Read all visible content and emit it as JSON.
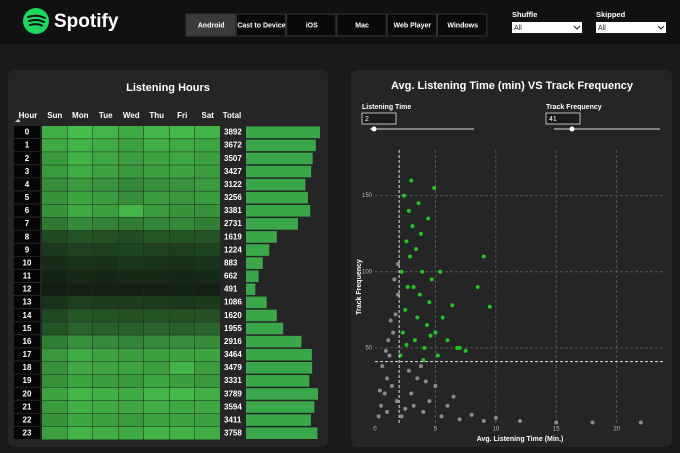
{
  "header": {
    "brand": "Spotify",
    "tabs": [
      "Android",
      "Cast to Device",
      "iOS",
      "Mac",
      "Web Player",
      "Windows"
    ],
    "active_tab": 0,
    "filters": [
      {
        "label": "Shuffle",
        "value": "All"
      },
      {
        "label": "Skipped",
        "value": "All"
      }
    ]
  },
  "chart_data": [
    {
      "type": "heatmap",
      "title": "Listening Hours",
      "row_header": "Hour",
      "total_header": "Total",
      "columns": [
        "Sun",
        "Mon",
        "Tue",
        "Wed",
        "Thu",
        "Fri",
        "Sat"
      ],
      "categories": [
        0,
        1,
        2,
        3,
        4,
        5,
        6,
        7,
        8,
        9,
        10,
        11,
        12,
        13,
        14,
        15,
        16,
        17,
        18,
        19,
        20,
        21,
        22,
        23
      ],
      "values": [
        [
          540,
          590,
          560,
          520,
          560,
          570,
          552
        ],
        [
          520,
          560,
          530,
          490,
          540,
          520,
          512
        ],
        [
          470,
          550,
          510,
          480,
          500,
          510,
          487
        ],
        [
          470,
          530,
          500,
          460,
          490,
          500,
          477
        ],
        [
          430,
          470,
          450,
          410,
          440,
          450,
          472
        ],
        [
          450,
          500,
          470,
          430,
          470,
          460,
          476
        ],
        [
          450,
          520,
          490,
          560,
          470,
          450,
          441
        ],
        [
          360,
          420,
          390,
          370,
          400,
          410,
          381
        ],
        [
          200,
          240,
          230,
          220,
          250,
          240,
          239
        ],
        [
          150,
          180,
          170,
          190,
          180,
          170,
          184
        ],
        [
          110,
          130,
          120,
          140,
          130,
          120,
          133
        ],
        [
          80,
          100,
          90,
          100,
          100,
          90,
          102
        ],
        [
          60,
          70,
          70,
          70,
          70,
          80,
          71
        ],
        [
          130,
          170,
          160,
          160,
          160,
          150,
          156
        ],
        [
          200,
          250,
          240,
          230,
          240,
          230,
          230
        ],
        [
          240,
          290,
          280,
          280,
          290,
          280,
          295
        ],
        [
          380,
          440,
          420,
          400,
          420,
          430,
          426
        ],
        [
          460,
          530,
          500,
          480,
          490,
          500,
          504
        ],
        [
          440,
          520,
          500,
          500,
          480,
          560,
          479
        ],
        [
          440,
          500,
          480,
          460,
          510,
          480,
          461
        ],
        [
          500,
          560,
          540,
          520,
          560,
          570,
          539
        ],
        [
          470,
          540,
          520,
          510,
          530,
          510,
          514
        ],
        [
          450,
          510,
          490,
          470,
          500,
          500,
          491
        ],
        [
          490,
          560,
          540,
          520,
          560,
          550,
          538
        ]
      ],
      "totals": [
        3892,
        3672,
        3507,
        3427,
        3122,
        3256,
        3381,
        2731,
        1619,
        1224,
        883,
        662,
        491,
        1086,
        1620,
        1955,
        2916,
        3464,
        3479,
        3331,
        3789,
        3594,
        3411,
        3758
      ],
      "bar_color": "#3aa84a"
    },
    {
      "type": "scatter",
      "title": "Avg. Listening Time (min) VS Track Frequency",
      "x_label": "Avg. Listening Time (Min.)",
      "y_label": "Track Frequency",
      "slicers": [
        {
          "label": "Listening Time",
          "value": 2
        },
        {
          "label": "Track Frequency",
          "value": 41
        }
      ],
      "xlim": [
        0,
        24
      ],
      "ylim": [
        0,
        180
      ],
      "xticks": [
        0,
        5,
        10,
        15,
        20
      ],
      "yticks": [
        50,
        100,
        150
      ],
      "grid": true,
      "series": [
        {
          "color": "#8a8a8a",
          "x": [
            0.3,
            0.5,
            0.8,
            1.0,
            1.2,
            1.5,
            1.7,
            1.9,
            0.6,
            1.1,
            1.4,
            1.8,
            1.6,
            1.3,
            0.9,
            1.9,
            2.5,
            3,
            3.5,
            4,
            4.5,
            5,
            5.5,
            6,
            7,
            8,
            9,
            10,
            12,
            15,
            18,
            22,
            2.8,
            3.8,
            4.2,
            6.5,
            2.2,
            3.2,
            1.0,
            0.4
          ],
          "values": [
            5,
            12,
            20,
            30,
            45,
            60,
            72,
            85,
            38,
            55,
            25,
            15,
            95,
            68,
            48,
            105,
            10,
            20,
            30,
            8,
            15,
            25,
            5,
            12,
            3,
            6,
            2,
            4,
            2,
            1,
            1,
            1,
            35,
            38,
            28,
            18,
            5,
            12,
            8,
            22
          ]
        },
        {
          "color": "#22c51e",
          "x": [
            2.1,
            2.3,
            2.5,
            2.7,
            2.9,
            3.1,
            3.3,
            3.5,
            3.7,
            3.9,
            4.1,
            4.3,
            4.5,
            4.7,
            2.4,
            2.6,
            2.8,
            3.0,
            3.4,
            3.8,
            4.4,
            5.0,
            5.2,
            5.6,
            6.0,
            6.4,
            7.0,
            7.5,
            8.5,
            9.0,
            9.5,
            6.8,
            4.9,
            3.6,
            2.2,
            4.0,
            5.4,
            3.2,
            2.6,
            4.6
          ],
          "values": [
            45,
            60,
            75,
            90,
            110,
            130,
            55,
            70,
            85,
            100,
            50,
            65,
            80,
            95,
            150,
            120,
            140,
            160,
            115,
            125,
            135,
            60,
            45,
            70,
            55,
            78,
            50,
            48,
            90,
            110,
            77,
            50,
            155,
            145,
            100,
            42,
            100,
            90,
            52,
            58
          ]
        }
      ]
    }
  ]
}
